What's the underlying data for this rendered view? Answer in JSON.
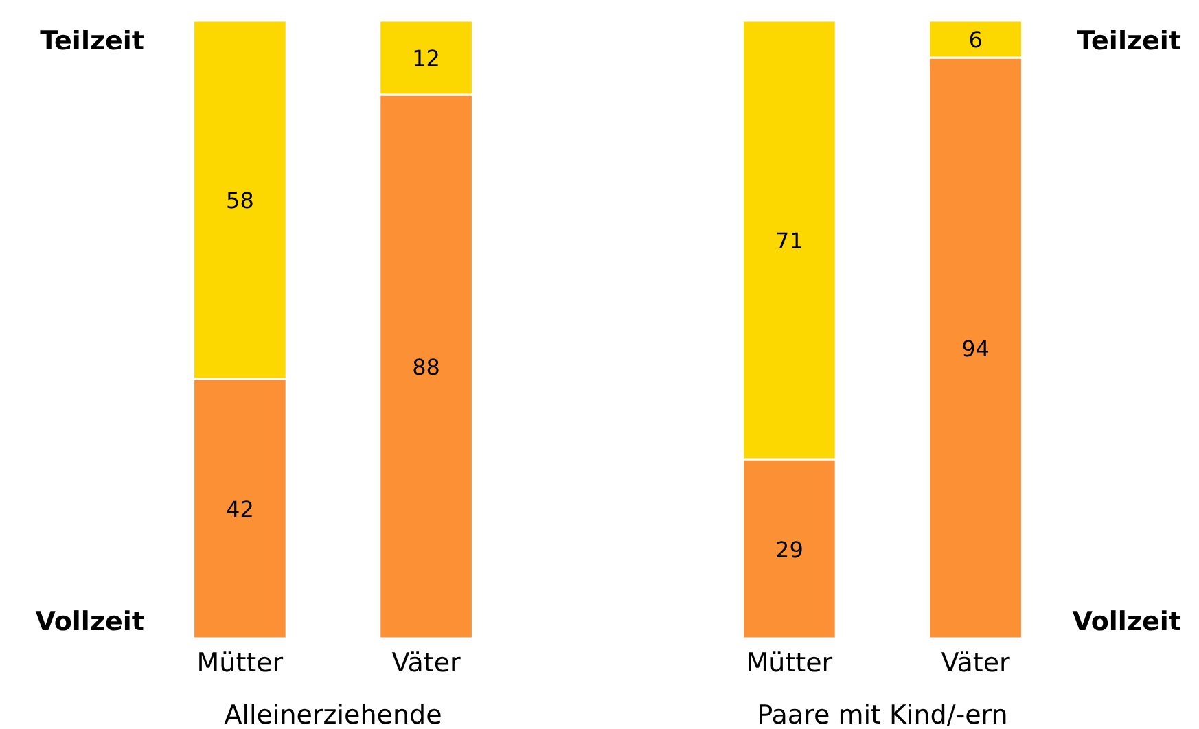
{
  "chart_data": [
    {
      "type": "bar",
      "stacked": true,
      "categories": [
        "Mütter",
        "Väter"
      ],
      "xlabel": "Alleinerziehende",
      "ylim": [
        0,
        100
      ],
      "data_labels": true,
      "legend": "left",
      "tick_labels": "x",
      "series": [
        {
          "name": "Vollzeit",
          "color": "#fb9035",
          "values": [
            42,
            88
          ]
        },
        {
          "name": "Teilzeit",
          "color": "#fdd700",
          "values": [
            58,
            12
          ]
        }
      ]
    },
    {
      "type": "bar",
      "stacked": true,
      "categories": [
        "Mütter",
        "Väter"
      ],
      "xlabel": "Paare mit Kind/-ern",
      "ylim": [
        0,
        100
      ],
      "data_labels": true,
      "legend": "right",
      "tick_labels": "x",
      "series": [
        {
          "name": "Vollzeit",
          "color": "#fb9035",
          "values": [
            29,
            94
          ]
        },
        {
          "name": "Teilzeit",
          "color": "#fdd700",
          "values": [
            71,
            6
          ]
        }
      ]
    }
  ]
}
